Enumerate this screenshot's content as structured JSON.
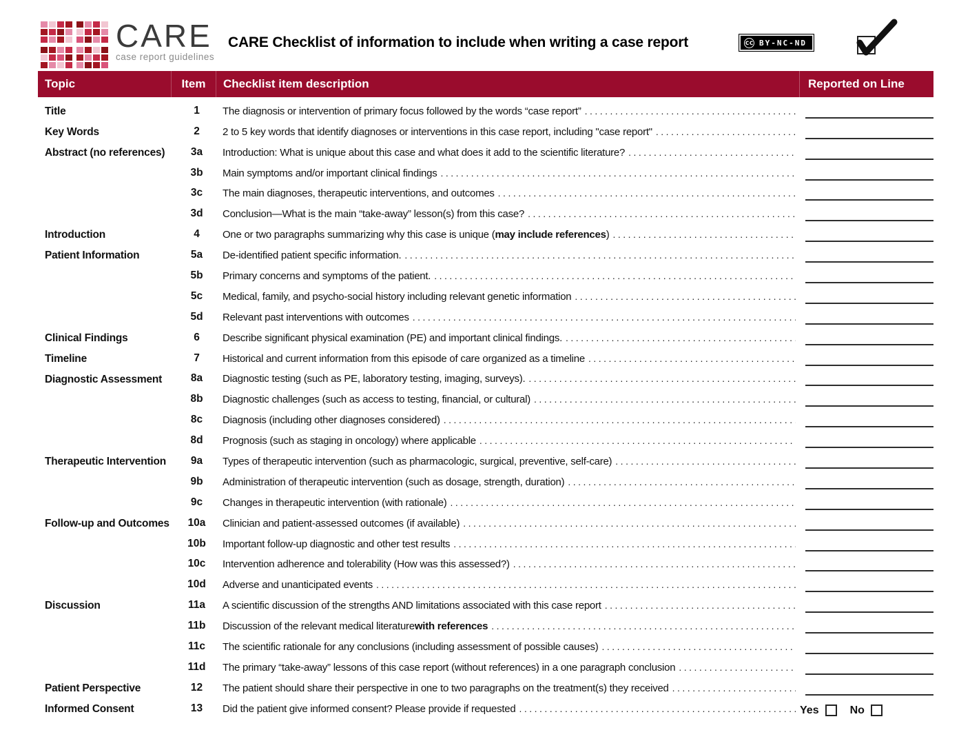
{
  "header": {
    "logo": {
      "brand": "CARE",
      "tagline": "case report guidelines",
      "palette": [
        "#a31622",
        "#c42a47",
        "#e58aa8",
        "#f2c6d2",
        "#8c1219",
        "#d9537a"
      ],
      "pattern": [
        "23104213",
        "01423102",
        "12035421",
        "40212034",
        "31540210",
        "02312405"
      ]
    },
    "title": "CARE Checklist of information to include when writing a case report",
    "license": {
      "cc": "cc",
      "label": "BY-NC-ND"
    }
  },
  "table": {
    "columns": {
      "topic": "Topic",
      "item": "Item",
      "description": "Checklist item description",
      "reported": "Reported on Line"
    },
    "band_color": "#9a0c2d",
    "yes_label": "Yes",
    "no_label": "No",
    "rows": [
      {
        "topic": "Title",
        "item": "1",
        "d1": "The diagnosis or intervention of primary focus followed by the words “case report”",
        "d2": "",
        "d3": "",
        "reported": "line"
      },
      {
        "topic": "Key Words",
        "item": "2",
        "d1": "2 to 5 key words that identify diagnoses or interventions in this case report, including \"case report\"",
        "d2": "",
        "d3": "",
        "reported": "line"
      },
      {
        "topic": "Abstract (no references)",
        "item": "3a",
        "d1": "Introduction: What is unique about this case and what does it add to the scientific literature?",
        "d2": "",
        "d3": "",
        "reported": "line"
      },
      {
        "topic": "",
        "item": "3b",
        "d1": "Main symptoms and/or important clinical findings",
        "d2": "",
        "d3": "",
        "reported": "line"
      },
      {
        "topic": "",
        "item": "3c",
        "d1": "The main diagnoses, therapeutic interventions, and outcomes",
        "d2": "",
        "d3": "",
        "reported": "line"
      },
      {
        "topic": "",
        "item": "3d",
        "d1": "Conclusion—What is the main “take-away” lesson(s) from this case?",
        "d2": "",
        "d3": "",
        "reported": "line"
      },
      {
        "topic": "Introduction",
        "item": "4",
        "d1": "One or two paragraphs summarizing why this case is unique (",
        "d2": "may include references",
        "d3": ")",
        "reported": "line"
      },
      {
        "topic": "Patient Information",
        "item": "5a",
        "d1": "De-identified patient specific information.",
        "d2": "",
        "d3": "",
        "reported": "line"
      },
      {
        "topic": "",
        "item": "5b",
        "d1": "Primary concerns and symptoms of the patient.",
        "d2": "",
        "d3": "",
        "reported": "line"
      },
      {
        "topic": "",
        "item": "5c",
        "d1": "Medical, family, and psycho-social history including relevant genetic information",
        "d2": "",
        "d3": "",
        "reported": "line"
      },
      {
        "topic": "",
        "item": "5d",
        "d1": "Relevant past interventions with outcomes",
        "d2": "",
        "d3": "",
        "reported": "line"
      },
      {
        "topic": "Clinical Findings",
        "item": "6",
        "d1": "Describe significant physical examination (PE) and important clinical findings.",
        "d2": "",
        "d3": "",
        "reported": "line"
      },
      {
        "topic": "Timeline",
        "item": "7",
        "d1": "Historical and current information from this episode of care organized as a timeline",
        "d2": "",
        "d3": "",
        "reported": "line"
      },
      {
        "topic": "Diagnostic Assessment",
        "item": "8a",
        "d1": "Diagnostic testing (such as PE, laboratory testing, imaging, surveys).",
        "d2": "",
        "d3": "",
        "reported": "line"
      },
      {
        "topic": "",
        "item": "8b",
        "d1": "Diagnostic challenges (such as access to testing, financial, or cultural)",
        "d2": "",
        "d3": "",
        "reported": "line"
      },
      {
        "topic": "",
        "item": "8c",
        "d1": "Diagnosis (including other diagnoses considered)",
        "d2": "",
        "d3": "",
        "reported": "line"
      },
      {
        "topic": "",
        "item": "8d",
        "d1": "Prognosis (such as staging in oncology) where applicable",
        "d2": "",
        "d3": "",
        "reported": "line"
      },
      {
        "topic": "Therapeutic Intervention",
        "item": "9a",
        "d1": "Types of therapeutic intervention (such as pharmacologic, surgical, preventive, self-care)",
        "d2": "",
        "d3": "",
        "reported": "line"
      },
      {
        "topic": "",
        "item": "9b",
        "d1": "Administration of therapeutic intervention (such as dosage, strength, duration)",
        "d2": "",
        "d3": "",
        "reported": "line"
      },
      {
        "topic": "",
        "item": "9c",
        "d1": "Changes in therapeutic intervention (with rationale)",
        "d2": "",
        "d3": "",
        "reported": "line"
      },
      {
        "topic": "Follow-up and Outcomes",
        "item": "10a",
        "d1": "Clinician and patient-assessed outcomes (if available)",
        "d2": "",
        "d3": "",
        "reported": "line"
      },
      {
        "topic": "",
        "item": "10b",
        "d1": "Important follow-up diagnostic and other test results",
        "d2": "",
        "d3": "",
        "reported": "line"
      },
      {
        "topic": "",
        "item": "10c",
        "d1": "Intervention adherence and tolerability (How was this assessed?)",
        "d2": "",
        "d3": "",
        "reported": "line"
      },
      {
        "topic": "",
        "item": "10d",
        "d1": "Adverse and unanticipated events",
        "d2": "",
        "d3": "",
        "reported": "line"
      },
      {
        "topic": "Discussion",
        "item": "11a",
        "d1": "A scientific discussion of the strengths AND limitations associated with this case report",
        "d2": "",
        "d3": "",
        "reported": "line"
      },
      {
        "topic": "",
        "item": "11b",
        "d1": "Discussion of the relevant medical literature ",
        "d2": "with references",
        "d3": "",
        "reported": "line"
      },
      {
        "topic": "",
        "item": "11c",
        "d1": "The scientific rationale for any conclusions (including assessment of possible causes)",
        "d2": "",
        "d3": "",
        "reported": "line"
      },
      {
        "topic": "",
        "item": "11d",
        "d1": "The primary “take-away” lessons of this case report (without references) in a one paragraph conclusion",
        "d2": "",
        "d3": "",
        "reported": "line"
      },
      {
        "topic": "Patient Perspective",
        "item": "12",
        "d1": "The patient should share their perspective in one to two paragraphs on the treatment(s) they received",
        "d2": "",
        "d3": "",
        "reported": "line"
      },
      {
        "topic": "Informed Consent",
        "item": "13",
        "d1": "Did the patient give informed consent? Please provide if requested",
        "d2": "",
        "d3": "",
        "reported": "yesno"
      }
    ]
  }
}
